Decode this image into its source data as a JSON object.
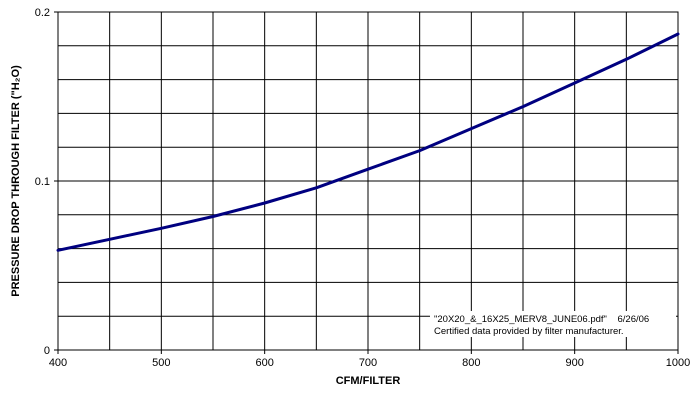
{
  "chart_data": {
    "type": "line",
    "xlabel": "CFM/FILTER",
    "ylabel": "PRESSURE DROP THROUGH FILTER (\"H₂O)",
    "xlim": [
      400,
      1000
    ],
    "ylim": [
      0,
      0.2
    ],
    "x_ticks": [
      "400",
      "500",
      "600",
      "700",
      "800",
      "900",
      "1000"
    ],
    "y_ticks": [
      "0",
      "0.1",
      "0.2"
    ],
    "grid": true,
    "line_color": "#000080",
    "series": [
      {
        "x": [
          400,
          450,
          500,
          550,
          600,
          650,
          700,
          750,
          800,
          850,
          900,
          950,
          1000
        ],
        "values": [
          0.059,
          0.0655,
          0.072,
          0.079,
          0.087,
          0.096,
          0.107,
          0.118,
          0.131,
          0.144,
          0.158,
          0.172,
          0.187
        ]
      }
    ],
    "annotation": {
      "line1": "\"20X20_&_16X25_MERV8_JUNE06.pdf\"    6/26/06",
      "line2": "Certified data provided by filter manufacturer."
    }
  }
}
